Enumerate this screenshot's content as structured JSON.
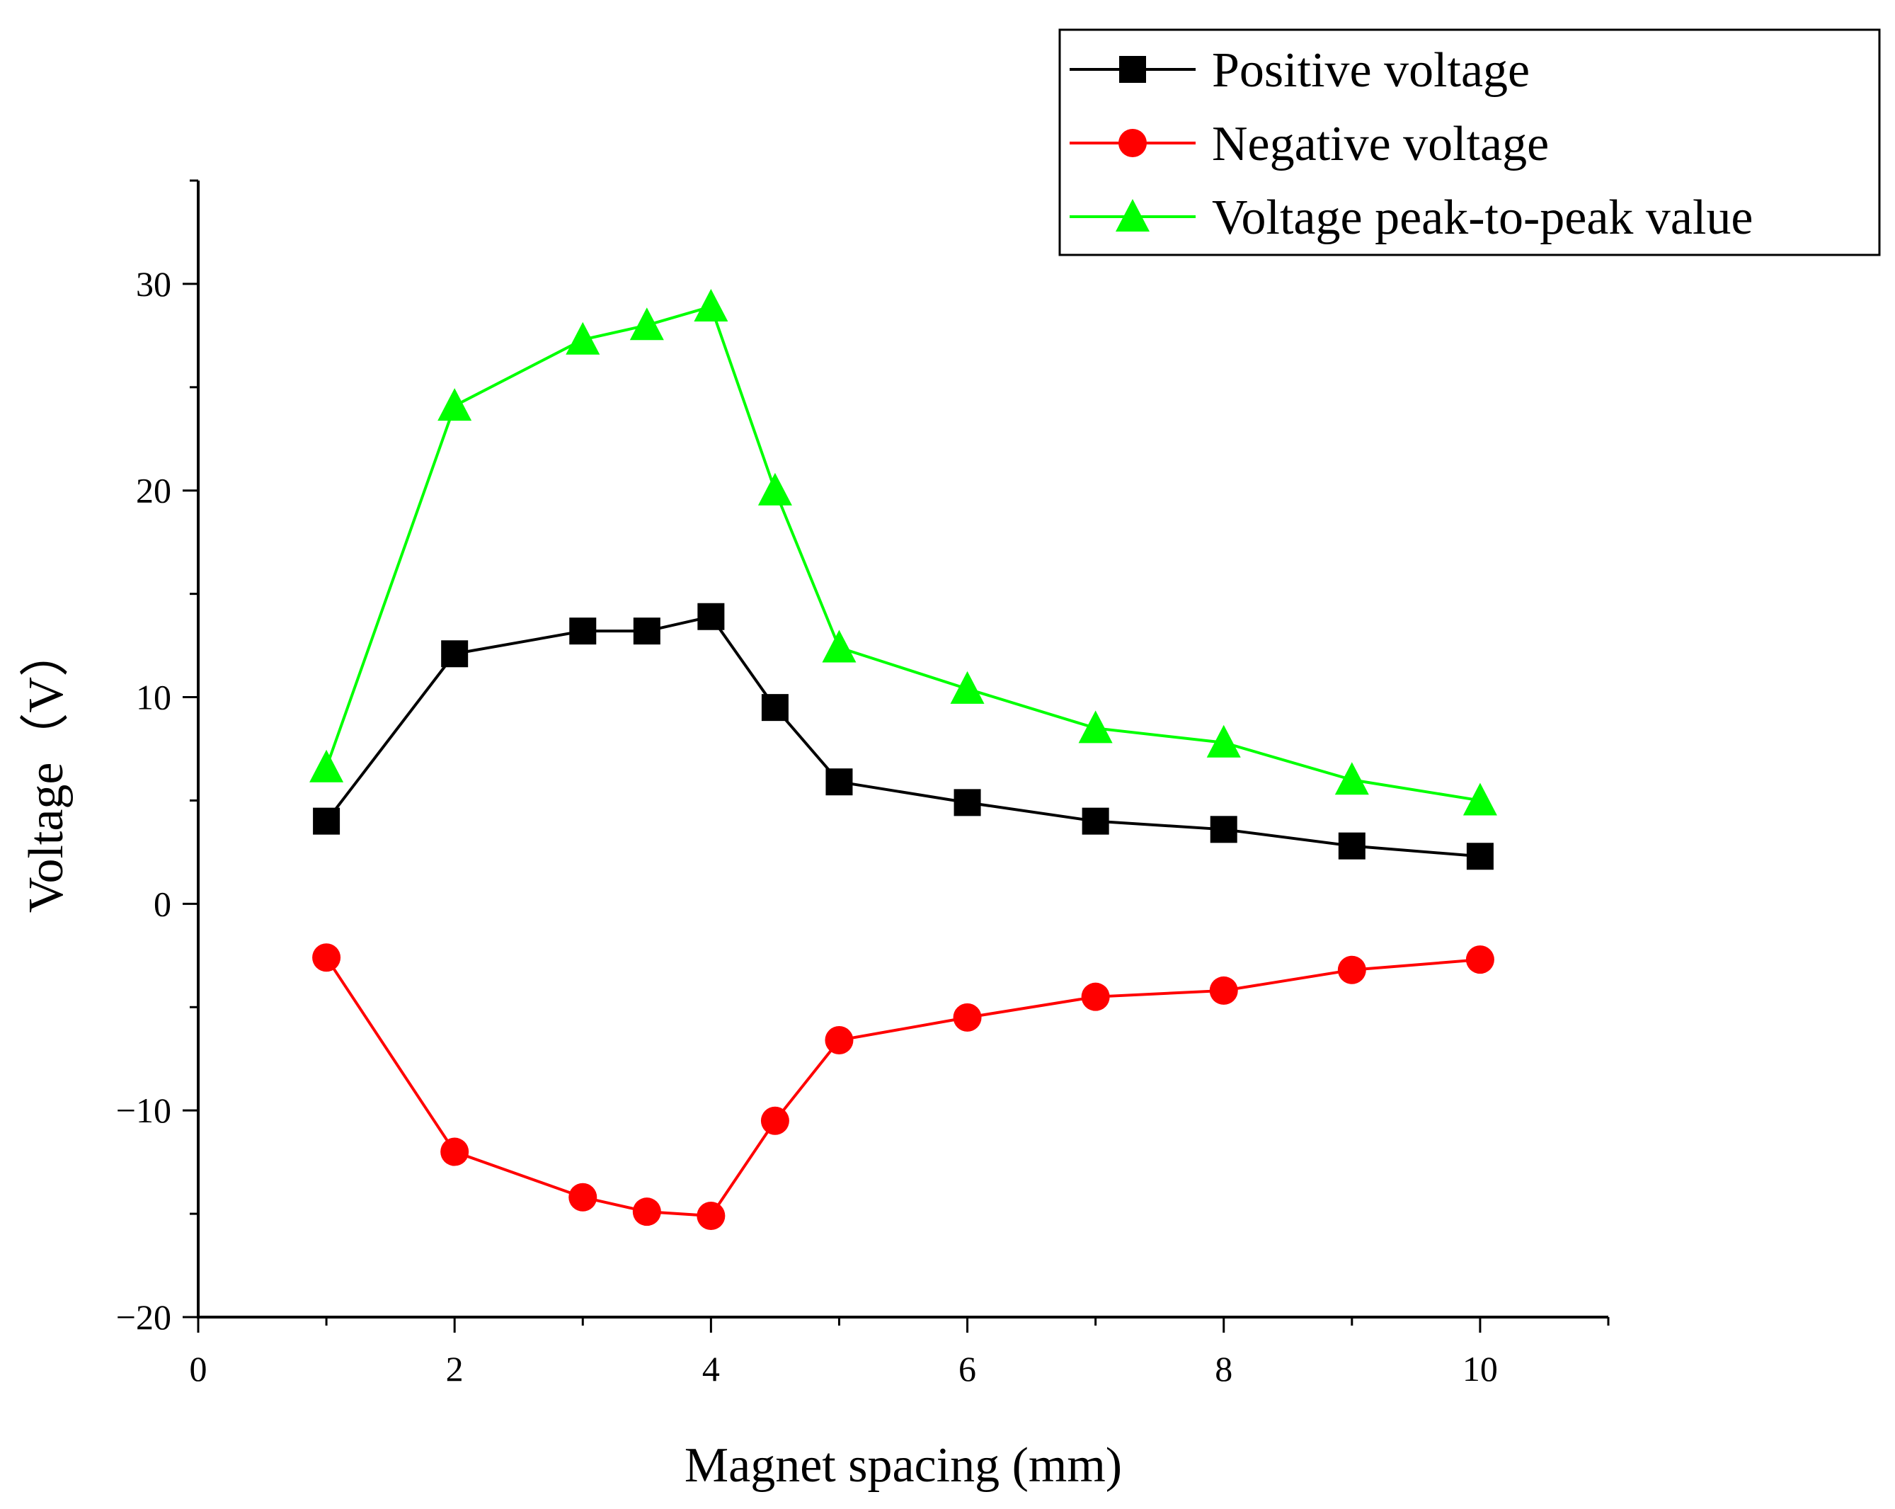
{
  "chart_data": {
    "type": "line",
    "xlabel": "Magnet spacing (mm)",
    "ylabel": "Voltage（V）",
    "xlim": [
      0,
      11
    ],
    "ylim": [
      -20,
      35
    ],
    "xticks": [
      0,
      2,
      4,
      6,
      8,
      10
    ],
    "xtick_labels": [
      "0",
      "2",
      "4",
      "6",
      "8",
      "10"
    ],
    "yticks": [
      -20,
      -10,
      0,
      10,
      20,
      30
    ],
    "ytick_labels": [
      "−20",
      "−10",
      "0",
      "10",
      "20",
      "30"
    ],
    "grid": false,
    "legend_position": "top-right",
    "x": [
      1,
      2,
      3,
      3.5,
      4,
      4.5,
      5,
      6,
      7,
      8,
      9,
      10
    ],
    "series": [
      {
        "name": "Positive voltage",
        "color": "#000000",
        "marker": "square",
        "values": [
          4.0,
          12.1,
          13.2,
          13.2,
          13.9,
          9.5,
          5.9,
          4.9,
          4.0,
          3.6,
          2.8,
          2.3
        ]
      },
      {
        "name": "Negative voltage",
        "color": "#ff0000",
        "marker": "circle",
        "values": [
          -2.6,
          -12.0,
          -14.2,
          -14.9,
          -15.1,
          -10.5,
          -6.6,
          -5.5,
          -4.5,
          -4.2,
          -3.2,
          -2.7
        ]
      },
      {
        "name": "Voltage peak-to-peak value",
        "color": "#00ff00",
        "marker": "triangle",
        "values": [
          6.6,
          24.1,
          27.3,
          28.0,
          28.9,
          20.0,
          12.4,
          10.4,
          8.5,
          7.8,
          6.0,
          5.0
        ]
      }
    ]
  }
}
